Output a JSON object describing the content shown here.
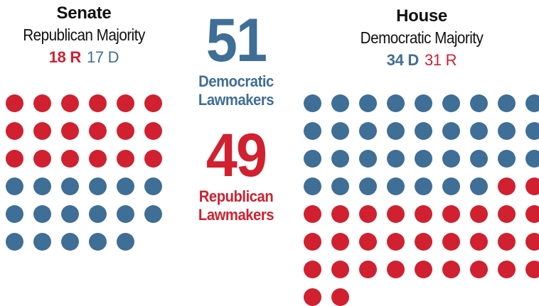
{
  "senate": {
    "title": "Senate",
    "subtitle": "Republican Majority",
    "r_count": "18 R",
    "d_count": "17 D",
    "seats": [
      "R",
      "R",
      "R",
      "R",
      "R",
      "R",
      "R",
      "R",
      "R",
      "R",
      "R",
      "R",
      "R",
      "R",
      "R",
      "R",
      "R",
      "R",
      "D",
      "D",
      "D",
      "D",
      "D",
      "D",
      "D",
      "D",
      "D",
      "D",
      "D",
      "D",
      "D",
      "D",
      "D",
      "D",
      "D"
    ]
  },
  "house": {
    "title": "House",
    "subtitle": "Democratic Majority",
    "d_count": "34 D",
    "r_count": "31 R",
    "seats": [
      "D",
      "D",
      "D",
      "D",
      "D",
      "D",
      "D",
      "D",
      "D",
      "D",
      "D",
      "D",
      "D",
      "D",
      "D",
      "D",
      "D",
      "D",
      "D",
      "D",
      "D",
      "D",
      "D",
      "D",
      "D",
      "D",
      "D",
      "D",
      "D",
      "D",
      "D",
      "D",
      "D",
      "D",
      "R",
      "R",
      "R",
      "R",
      "R",
      "R",
      "R",
      "R",
      "R",
      "R",
      "R",
      "R",
      "R",
      "R",
      "R",
      "R",
      "R",
      "R",
      "R",
      "R",
      "R",
      "R",
      "R",
      "R",
      "R",
      "R",
      "R",
      "R",
      "R",
      "R",
      "R"
    ]
  },
  "totals": {
    "democratic_number": "51",
    "democratic_label_line1": "Democratic",
    "democratic_label_line2": "Lawmakers",
    "republican_number": "49",
    "republican_label_line1": "Republican",
    "republican_label_line2": "Lawmakers"
  },
  "colors": {
    "republican": "#d1202f",
    "democratic": "#3f6e96"
  }
}
